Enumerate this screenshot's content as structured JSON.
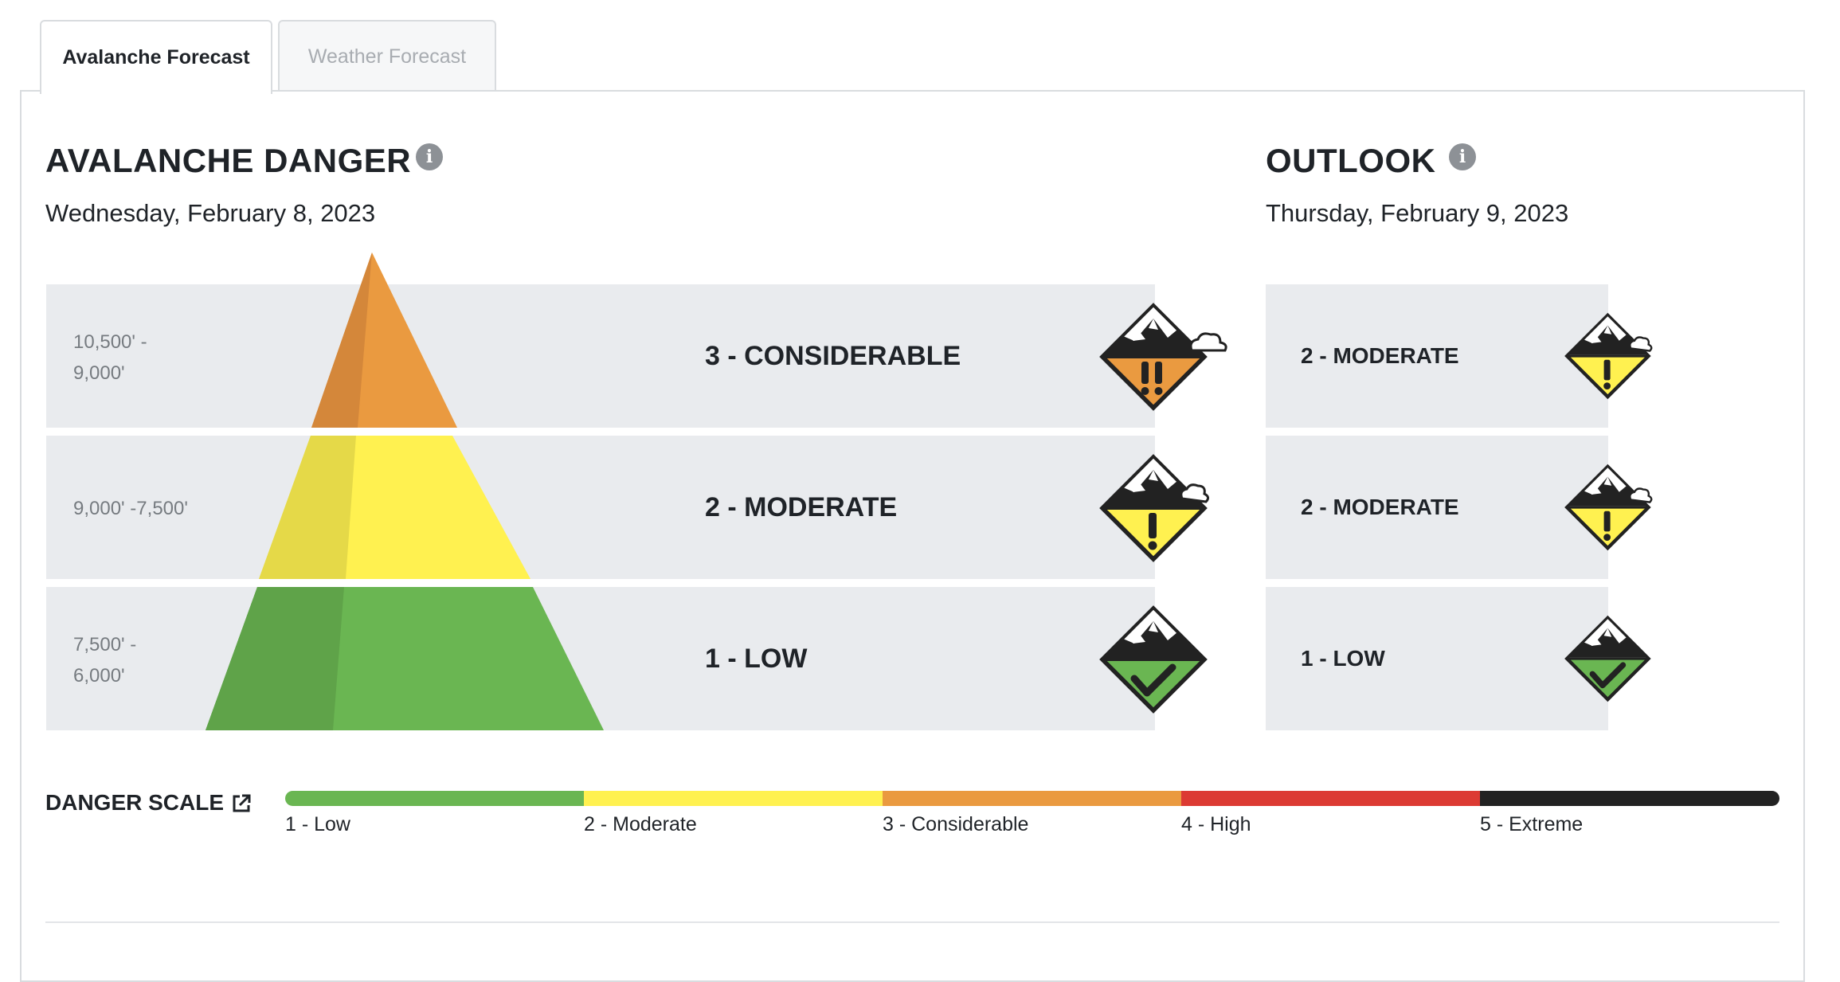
{
  "tabs": [
    {
      "label": "Avalanche Forecast",
      "active": true
    },
    {
      "label": "Weather Forecast",
      "active": false
    }
  ],
  "danger": {
    "title": "AVALANCHE DANGER",
    "date": "Wednesday, February 8, 2023",
    "bands": [
      {
        "elevation": "10,500' -\n9,000'",
        "rating": "3 - CONSIDERABLE",
        "level": 3,
        "icon": "considerable-danger-icon"
      },
      {
        "elevation": "9,000' -7,500'",
        "rating": "2 - MODERATE",
        "level": 2,
        "icon": "moderate-danger-icon"
      },
      {
        "elevation": "7,500' -\n6,000'",
        "rating": "1 - LOW",
        "level": 1,
        "icon": "low-danger-icon"
      }
    ]
  },
  "outlook": {
    "title": "OUTLOOK",
    "date": "Thursday, February 9, 2023",
    "bands": [
      {
        "rating": "2 - MODERATE",
        "level": 2,
        "icon": "moderate-danger-icon"
      },
      {
        "rating": "2 - MODERATE",
        "level": 2,
        "icon": "moderate-danger-icon"
      },
      {
        "rating": "1 - LOW",
        "level": 1,
        "icon": "low-danger-icon"
      }
    ]
  },
  "scale": {
    "title": "DANGER SCALE",
    "levels": [
      {
        "label": "1 - Low",
        "color": "#6ab652"
      },
      {
        "label": "2 - Moderate",
        "color": "#fff150"
      },
      {
        "label": "3 - Considerable",
        "color": "#ea9a40"
      },
      {
        "label": "4 - High",
        "color": "#dc3a33"
      },
      {
        "label": "5 - Extreme",
        "color": "#222222"
      }
    ]
  },
  "colors": {
    "low": "#6ab652",
    "moderate": "#fff150",
    "considerable": "#ea9a40"
  }
}
